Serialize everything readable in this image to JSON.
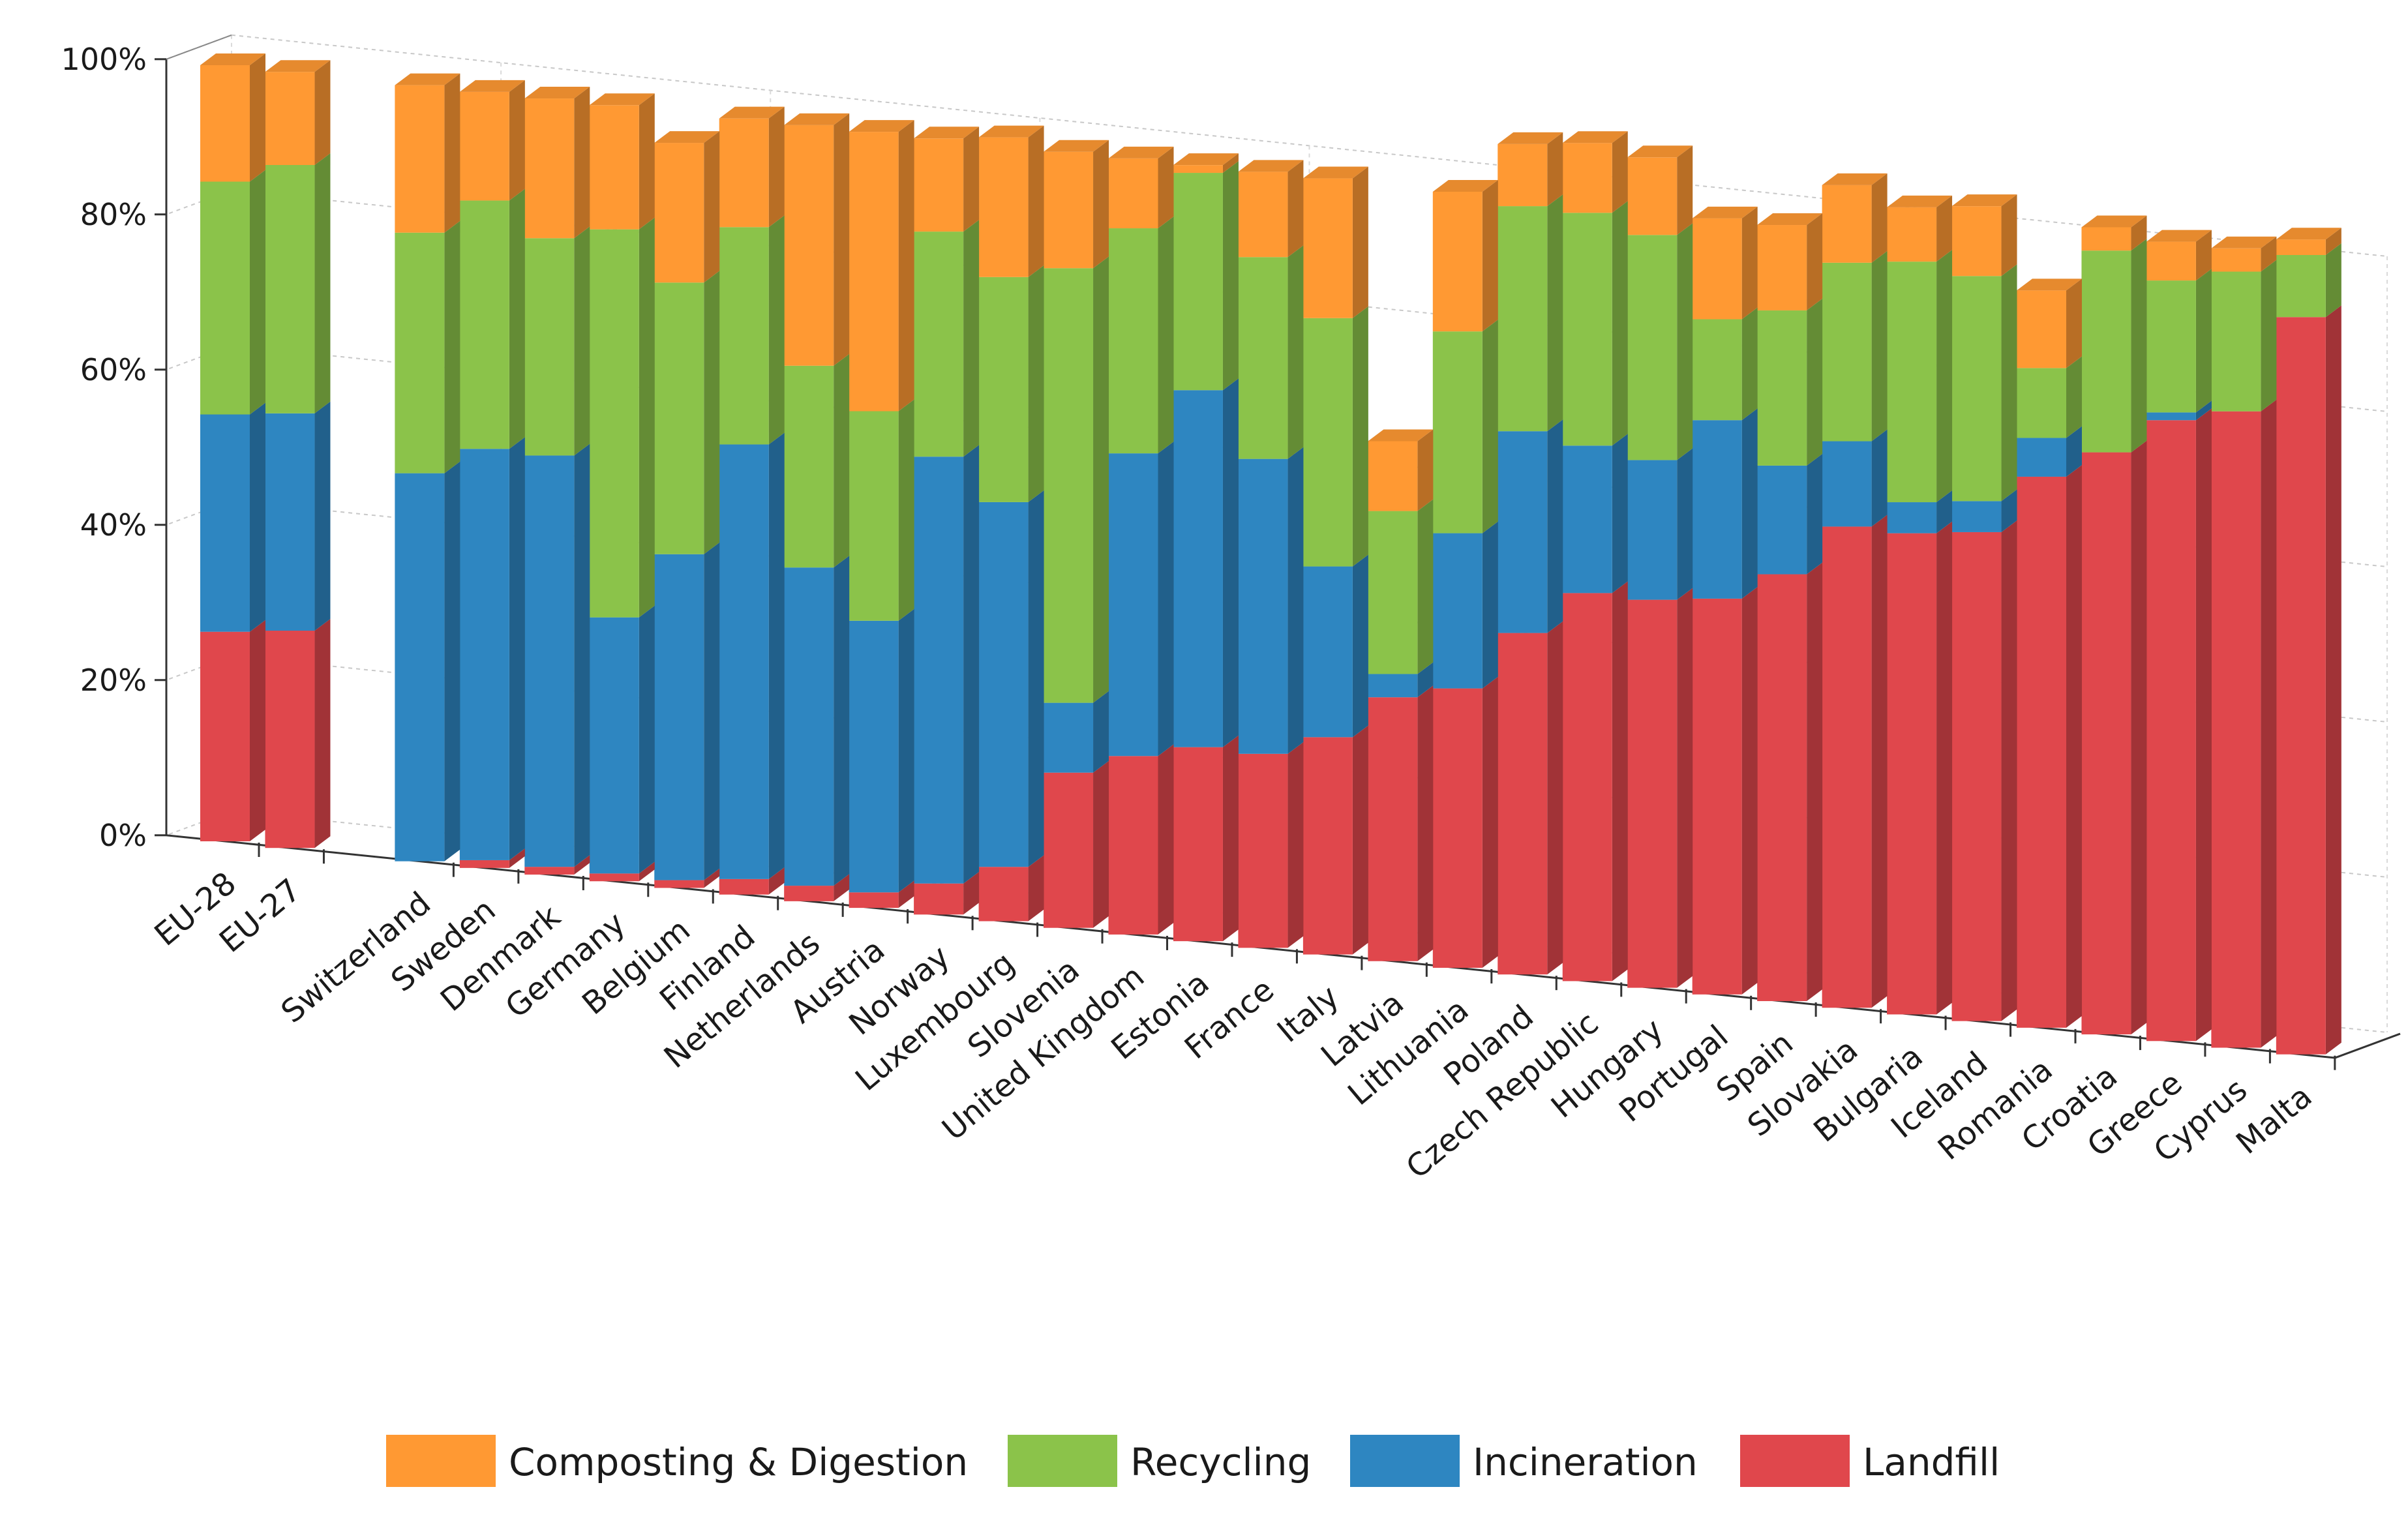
{
  "chart_data": {
    "type": "bar",
    "stacked": true,
    "normalized": true,
    "title": "",
    "xlabel": "",
    "ylabel": "",
    "ylim": [
      0,
      100
    ],
    "y_ticks": [
      "0%",
      "20%",
      "40%",
      "60%",
      "80%",
      "100%"
    ],
    "grid": true,
    "legend_position": "bottom",
    "categories": [
      "EU-28",
      "EU-27",
      "Switzerland",
      "Sweden",
      "Denmark",
      "Germany",
      "Belgium",
      "Finland",
      "Netherlands",
      "Austria",
      "Norway",
      "Luxembourg",
      "Slovenia",
      "United Kingdom",
      "Estonia",
      "France",
      "Italy",
      "Latvia",
      "Lithuania",
      "Poland",
      "Czech Republic",
      "Hungary",
      "Portugal",
      "Spain",
      "Slovakia",
      "Bulgaria",
      "Iceland",
      "Romania",
      "Croatia",
      "Greece",
      "Cyprus",
      "Malta"
    ],
    "series": [
      {
        "name": "Landfill",
        "color": "#e0474c",
        "values": [
          27,
          28,
          0,
          1,
          1,
          1,
          1,
          2,
          2,
          2,
          4,
          7,
          20,
          23,
          25,
          25,
          28,
          34,
          36,
          44,
          50,
          50,
          51,
          55,
          62,
          62,
          63,
          71,
          75,
          80,
          82,
          95
        ]
      },
      {
        "name": "Incineration",
        "color": "#2e86c1",
        "values": [
          28,
          28,
          50,
          53,
          53,
          33,
          42,
          56,
          41,
          35,
          55,
          47,
          9,
          39,
          46,
          38,
          22,
          3,
          20,
          26,
          19,
          18,
          23,
          14,
          11,
          4,
          4,
          5,
          0,
          1,
          0,
          0
        ]
      },
      {
        "name": "Recycling",
        "color": "#8bc34a",
        "values": [
          30,
          32,
          31,
          32,
          28,
          50,
          35,
          28,
          26,
          27,
          29,
          29,
          56,
          29,
          28,
          26,
          32,
          21,
          26,
          29,
          30,
          29,
          13,
          20,
          23,
          31,
          29,
          9,
          26,
          17,
          18,
          8
        ]
      },
      {
        "name": "Composting & Digestion",
        "color": "#ff9933",
        "values": [
          15,
          12,
          19,
          14,
          18,
          16,
          18,
          14,
          31,
          36,
          12,
          18,
          15,
          9,
          1,
          11,
          18,
          9,
          18,
          8,
          9,
          10,
          13,
          11,
          10,
          7,
          9,
          10,
          3,
          5,
          3,
          2
        ]
      }
    ]
  },
  "legend": {
    "items": [
      {
        "label": "Composting & Digestion",
        "color": "#ff9933"
      },
      {
        "label": "Recycling",
        "color": "#8bc34a"
      },
      {
        "label": "Incineration",
        "color": "#2e86c1"
      },
      {
        "label": "Landfill",
        "color": "#e0474c"
      }
    ]
  }
}
